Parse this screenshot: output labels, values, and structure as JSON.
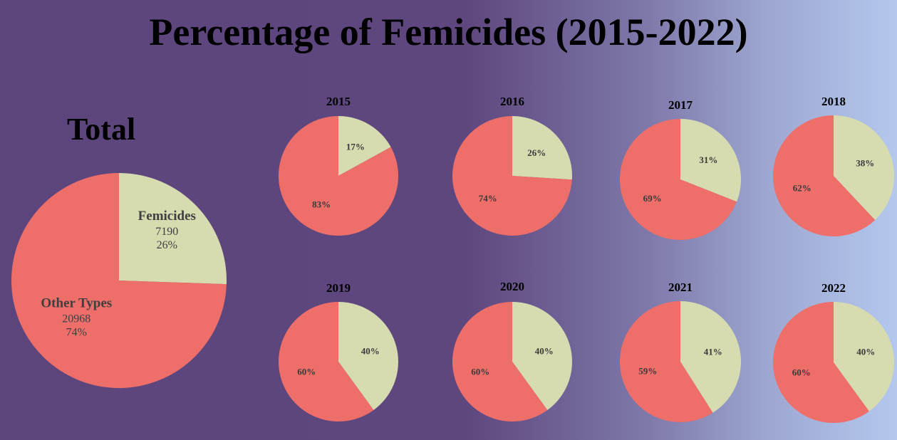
{
  "title": "Percentage of Femicides (2015-2022)",
  "total_heading": "Total",
  "colors": {
    "femicides": "#d6dbb0",
    "other": "#ee6e6a"
  },
  "chart_data": [
    {
      "type": "pie",
      "name": "Total",
      "slices": [
        {
          "label": "Femicides",
          "value": 7190,
          "percent_label": "26%"
        },
        {
          "label": "Other Types",
          "value": 20968,
          "percent_label": "74%"
        }
      ]
    },
    {
      "type": "pie",
      "title": "2015",
      "slices": [
        {
          "label": "Femicides",
          "value": 17,
          "percent_label": "17%"
        },
        {
          "label": "Other Types",
          "value": 83,
          "percent_label": "83%"
        }
      ]
    },
    {
      "type": "pie",
      "title": "2016",
      "slices": [
        {
          "label": "Femicides",
          "value": 26,
          "percent_label": "26%"
        },
        {
          "label": "Other Types",
          "value": 74,
          "percent_label": "74%"
        }
      ]
    },
    {
      "type": "pie",
      "title": "2017",
      "slices": [
        {
          "label": "Femicides",
          "value": 31,
          "percent_label": "31%"
        },
        {
          "label": "Other Types",
          "value": 69,
          "percent_label": "69%"
        }
      ]
    },
    {
      "type": "pie",
      "title": "2018",
      "slices": [
        {
          "label": "Femicides",
          "value": 38,
          "percent_label": "38%"
        },
        {
          "label": "Other Types",
          "value": 62,
          "percent_label": "62%"
        }
      ]
    },
    {
      "type": "pie",
      "title": "2019",
      "slices": [
        {
          "label": "Femicides",
          "value": 40,
          "percent_label": "40%"
        },
        {
          "label": "Other Types",
          "value": 60,
          "percent_label": "60%"
        }
      ]
    },
    {
      "type": "pie",
      "title": "2020",
      "slices": [
        {
          "label": "Femicides",
          "value": 40,
          "percent_label": "40%"
        },
        {
          "label": "Other Types",
          "value": 60,
          "percent_label": "60%"
        }
      ]
    },
    {
      "type": "pie",
      "title": "2021",
      "slices": [
        {
          "label": "Femicides",
          "value": 41,
          "percent_label": "41%"
        },
        {
          "label": "Other Types",
          "value": 59,
          "percent_label": "59%"
        }
      ]
    },
    {
      "type": "pie",
      "title": "2022",
      "slices": [
        {
          "label": "Femicides",
          "value": 40,
          "percent_label": "40%"
        },
        {
          "label": "Other Types",
          "value": 60,
          "percent_label": "60%"
        }
      ]
    }
  ]
}
